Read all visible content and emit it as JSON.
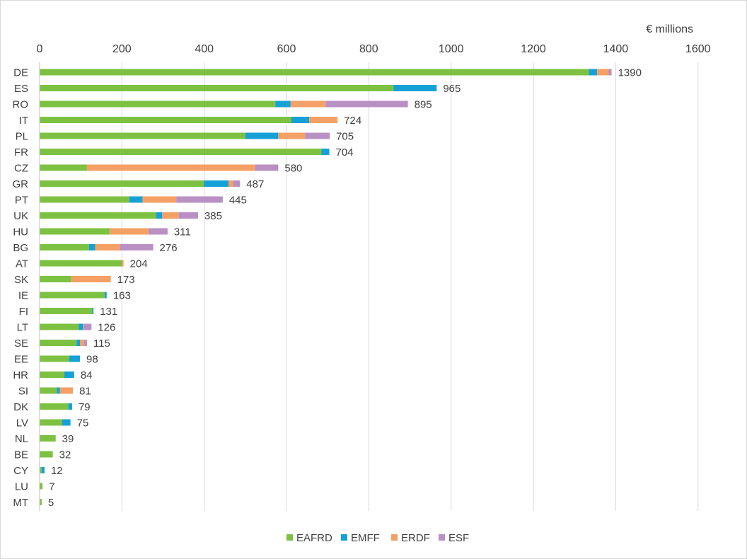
{
  "chart_data": {
    "type": "bar",
    "orientation": "horizontal",
    "stacked": true,
    "unit_label": "€ millions",
    "xlim": [
      0,
      1600
    ],
    "xticks": [
      "0",
      "200",
      "400",
      "600",
      "800",
      "1000",
      "1200",
      "1400",
      "1600"
    ],
    "grid": "vertical",
    "legend_position": "bottom",
    "categories": [
      "DE",
      "ES",
      "RO",
      "IT",
      "PL",
      "FR",
      "CZ",
      "GR",
      "PT",
      "UK",
      "HU",
      "BG",
      "AT",
      "SK",
      "IE",
      "FI",
      "LT",
      "SE",
      "EE",
      "HR",
      "SI",
      "DK",
      "LV",
      "NL",
      "BE",
      "CY",
      "LU",
      "MT"
    ],
    "totals": [
      "1390",
      "965",
      "895",
      "724",
      "705",
      "704",
      "580",
      "487",
      "445",
      "385",
      "311",
      "276",
      "204",
      "173",
      "163",
      "131",
      "126",
      "115",
      "98",
      "84",
      "81",
      "79",
      "75",
      "39",
      "32",
      "12",
      "7",
      "5"
    ],
    "series": [
      {
        "name": "EAFRD",
        "color": "#7dc142",
        "values": [
          1335,
          860,
          573,
          612,
          500,
          685,
          115,
          399,
          218,
          283,
          170,
          120,
          200,
          77,
          158,
          128,
          95,
          90,
          72,
          60,
          42,
          70,
          55,
          39,
          32,
          5,
          7,
          5
        ]
      },
      {
        "name": "EMFF",
        "color": "#16a1d6",
        "values": [
          20,
          105,
          37,
          43,
          80,
          19,
          0,
          60,
          32,
          15,
          0,
          15,
          0,
          0,
          5,
          3,
          11,
          8,
          26,
          24,
          7,
          9,
          20,
          0,
          0,
          7,
          0,
          0
        ]
      },
      {
        "name": "ERDF",
        "color": "#f5a064",
        "values": [
          28,
          0,
          85,
          69,
          65,
          0,
          409,
          12,
          82,
          40,
          95,
          60,
          4,
          96,
          0,
          0,
          2,
          10,
          0,
          0,
          32,
          0,
          0,
          0,
          0,
          0,
          0,
          0
        ]
      },
      {
        "name": "ESF",
        "color": "#b990c4",
        "values": [
          7,
          0,
          200,
          0,
          60,
          0,
          56,
          16,
          113,
          47,
          46,
          81,
          0,
          0,
          0,
          0,
          18,
          7,
          0,
          0,
          0,
          0,
          0,
          0,
          0,
          0,
          0,
          0
        ]
      }
    ]
  }
}
